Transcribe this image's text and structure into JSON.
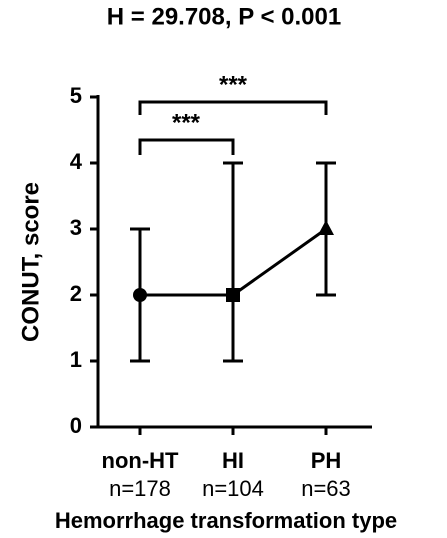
{
  "chart_data": {
    "type": "line",
    "title": "H = 29.708, P < 0.001",
    "categories": [
      "non-HT",
      "HI",
      "PH"
    ],
    "sample_sizes": [
      "n=178",
      "n=104",
      "n=63"
    ],
    "values": [
      2,
      2,
      3
    ],
    "lower": [
      1,
      1,
      2
    ],
    "upper": [
      3,
      4,
      4
    ],
    "color": "#000000",
    "ylim": [
      0,
      5
    ],
    "yticks": [
      0,
      1,
      2,
      3,
      4,
      5
    ],
    "y_label": "CONUT, score",
    "x_label": "Hemorrhage transformation type",
    "annotations": [
      "***",
      "***"
    ]
  }
}
